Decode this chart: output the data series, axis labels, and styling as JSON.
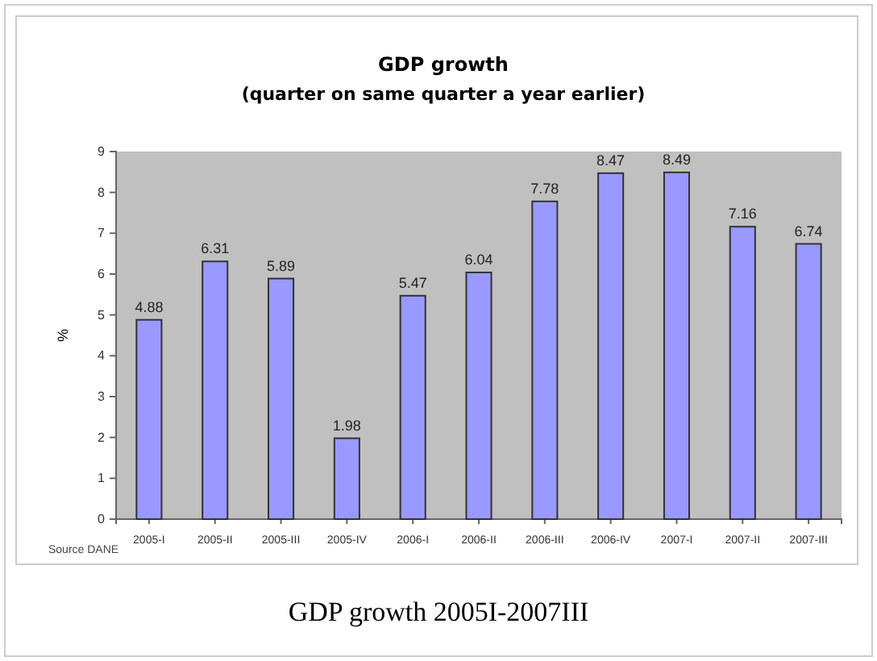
{
  "chart_data": {
    "type": "bar",
    "title": "GDP growth",
    "subtitle": "(quarter on same quarter a year earlier)",
    "ylabel": "%",
    "categories": [
      "2005-I",
      "2005-II",
      "2005-III",
      "2005-IV",
      "2006-I",
      "2006-II",
      "2006-III",
      "2006-IV",
      "2007-I",
      "2007-II",
      "2007-III"
    ],
    "values": [
      4.88,
      6.31,
      5.89,
      1.98,
      5.47,
      6.04,
      7.78,
      8.47,
      8.49,
      7.16,
      6.74
    ],
    "color": "#9999ff",
    "ylim": [
      0,
      9
    ],
    "yticks": [
      0,
      1,
      2,
      3,
      4,
      5,
      6,
      7,
      8,
      9
    ],
    "grid": false,
    "data_labels": true,
    "annotations": [
      "Source DANE",
      "GDP growth 2005I-2007III"
    ]
  }
}
